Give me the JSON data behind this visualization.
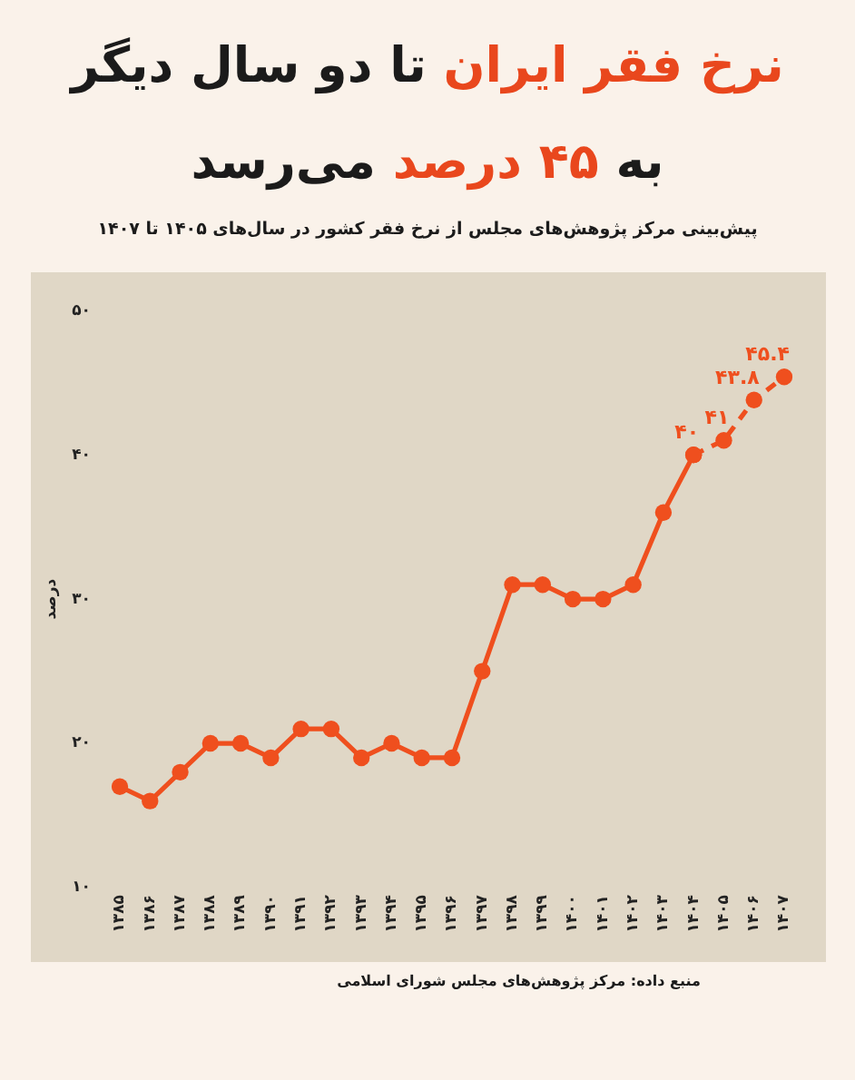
{
  "chart_data": {
    "type": "line",
    "title": "نرخ فقر ایران تا دو سال دیگر به ۴۵ درصد می‌رسد",
    "subtitle": "پیش‌بینی مرکز پژوهش‌های مجلس از نرخ فقر کشور در سال‌های ۱۴۰۵ تا ۱۴۰۷",
    "ylabel": "درصد",
    "categories": [
      "۱۳۸۵",
      "۱۳۸۶",
      "۱۳۸۷",
      "۱۳۸۸",
      "۱۳۸۹",
      "۱۳۹۰",
      "۱۳۹۱",
      "۱۳۹۲",
      "۱۳۹۳",
      "۱۳۹۴",
      "۱۳۹۵",
      "۱۳۹۶",
      "۱۳۹۷",
      "۱۳۹۸",
      "۱۳۹۹",
      "۱۴۰۰",
      "۱۴۰۱",
      "۱۴۰۲",
      "۱۴۰۳",
      "۱۴۰۴",
      "۱۴۰۵",
      "۱۴۰۶",
      "۱۴۰۷"
    ],
    "series": [
      {
        "color": "#ef4f1e",
        "line_style": "solid",
        "values": [
          17,
          16,
          18,
          20,
          20,
          19,
          21,
          21,
          19,
          20,
          19,
          19,
          25,
          31,
          31,
          30,
          30,
          31,
          36,
          40,
          null,
          null,
          null
        ]
      },
      {
        "color": "#ef4f1e",
        "line_style": "dashed",
        "values": [
          null,
          null,
          null,
          null,
          null,
          null,
          null,
          null,
          null,
          null,
          null,
          null,
          null,
          null,
          null,
          null,
          null,
          null,
          null,
          40,
          41,
          43.8,
          45.4
        ],
        "value_labels": [
          null,
          null,
          null,
          null,
          null,
          null,
          null,
          null,
          null,
          null,
          null,
          null,
          null,
          null,
          null,
          null,
          null,
          null,
          null,
          "۴۰",
          "۴۱",
          "۴۳.۸",
          "۴۵.۴"
        ]
      }
    ],
    "ylim": [
      10,
      50
    ],
    "yticks": [
      {
        "value": 10,
        "label": "۱۰"
      },
      {
        "value": 20,
        "label": "۲۰"
      },
      {
        "value": 30,
        "label": "۳۰"
      },
      {
        "value": 40,
        "label": "۴۰"
      },
      {
        "value": 50,
        "label": "۵۰"
      }
    ],
    "marker": "circle",
    "grid": false,
    "legend": false,
    "annotations": [
      "منبع داده: مرکز پژوهش‌های مجلس شورای اسلامی"
    ]
  }
}
